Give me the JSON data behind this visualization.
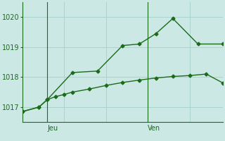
{
  "bg_color": "#cce8e4",
  "grid_color": "#aad4ce",
  "line_color": "#1a6b1a",
  "ylim": [
    1016.5,
    1020.5
  ],
  "yticks": [
    1017,
    1018,
    1019,
    1020
  ],
  "xlim": [
    0,
    24
  ],
  "vline_x": [
    3,
    15
  ],
  "vline_labels": [
    "Jeu",
    "Ven"
  ],
  "line1_x": [
    0,
    2,
    3,
    4,
    5,
    6,
    8,
    10,
    12,
    14,
    16,
    18,
    20,
    22,
    24
  ],
  "line1_y": [
    1016.85,
    1017.0,
    1017.25,
    1017.35,
    1017.42,
    1017.5,
    1017.6,
    1017.72,
    1017.82,
    1017.9,
    1017.97,
    1018.02,
    1018.05,
    1018.1,
    1017.8
  ],
  "line2_x": [
    0,
    2,
    3,
    6,
    9,
    12,
    14,
    16,
    18,
    21,
    24
  ],
  "line2_y": [
    1016.85,
    1017.0,
    1017.25,
    1018.15,
    1018.2,
    1019.05,
    1019.1,
    1019.45,
    1019.95,
    1019.1,
    1019.1
  ],
  "marker": "D",
  "marker_size": 2.5,
  "linewidth": 1.0,
  "fontsize_xlabel": 8,
  "fontsize_tick": 7,
  "fontsize_daylab": 7
}
